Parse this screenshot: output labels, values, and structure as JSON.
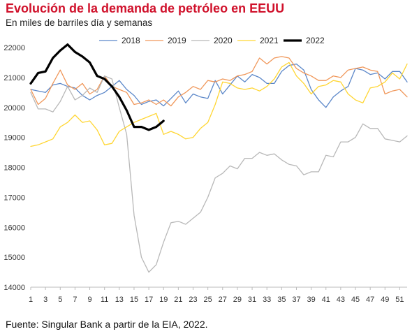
{
  "header": {
    "title": "Evolución de la demanda de petróleo en EEUU",
    "subtitle": "En miles de barriles día y semanas"
  },
  "footer": {
    "source": "Fuente: Singular Bank a partir de la EIA, 2022."
  },
  "colors": {
    "title": "#d0112b",
    "axis": "#bbbbbb"
  },
  "chart_data": {
    "type": "line",
    "xlim": [
      1,
      52
    ],
    "ylim": [
      14000,
      22000
    ],
    "y_ticks": [
      14000,
      15000,
      16000,
      17000,
      18000,
      19000,
      20000,
      21000,
      22000
    ],
    "x_ticks": [
      1,
      3,
      5,
      7,
      9,
      11,
      13,
      15,
      17,
      19,
      21,
      23,
      25,
      27,
      29,
      31,
      33,
      35,
      37,
      39,
      41,
      43,
      45,
      47,
      49,
      51
    ],
    "grid": false,
    "legend_position": "top-center",
    "series": [
      {
        "name": "2018",
        "color": "#5b87c9",
        "width": 1.3,
        "x": [
          1,
          2,
          3,
          4,
          5,
          6,
          7,
          8,
          9,
          10,
          11,
          12,
          13,
          14,
          15,
          16,
          17,
          18,
          19,
          20,
          21,
          22,
          23,
          24,
          25,
          26,
          27,
          28,
          29,
          30,
          31,
          32,
          33,
          34,
          35,
          36,
          37,
          38,
          39,
          40,
          41,
          42,
          43,
          44,
          45,
          46,
          47,
          48,
          49,
          50,
          51,
          52
        ],
        "values": [
          20600,
          20550,
          20500,
          20750,
          20800,
          20700,
          20650,
          20400,
          20250,
          20400,
          20500,
          20700,
          20900,
          20600,
          20400,
          20100,
          20200,
          20250,
          20050,
          20300,
          20550,
          20150,
          20450,
          20350,
          20300,
          20900,
          20450,
          20750,
          21050,
          20850,
          21100,
          21000,
          20800,
          20800,
          21200,
          21400,
          21450,
          21250,
          20600,
          20250,
          20000,
          20350,
          20550,
          20700,
          21300,
          21250,
          21100,
          21150,
          20950,
          21200,
          21200,
          20850
        ]
      },
      {
        "name": "2019",
        "color": "#f0975a",
        "width": 1.3,
        "x": [
          1,
          2,
          3,
          4,
          5,
          6,
          7,
          8,
          9,
          10,
          11,
          12,
          13,
          14,
          15,
          16,
          17,
          18,
          19,
          20,
          21,
          22,
          23,
          24,
          25,
          26,
          27,
          28,
          29,
          30,
          31,
          32,
          33,
          34,
          35,
          36,
          37,
          38,
          39,
          40,
          41,
          42,
          43,
          44,
          45,
          46,
          47,
          48,
          49,
          50,
          51,
          52
        ],
        "values": [
          20600,
          20100,
          20300,
          20800,
          21250,
          20750,
          20600,
          20800,
          20450,
          20600,
          21050,
          20700,
          20600,
          20500,
          20100,
          20150,
          20250,
          20100,
          20250,
          20050,
          20350,
          20500,
          20700,
          20600,
          20900,
          20850,
          20950,
          20900,
          21050,
          21100,
          21200,
          21650,
          21450,
          21650,
          21700,
          21650,
          21300,
          21150,
          21050,
          20900,
          20900,
          21050,
          21000,
          21250,
          21300,
          21350,
          21250,
          21200,
          20450,
          20550,
          20600,
          20350
        ]
      },
      {
        "name": "2020",
        "color": "#b8b8b8",
        "width": 1.3,
        "x": [
          1,
          2,
          3,
          4,
          5,
          6,
          7,
          8,
          9,
          10,
          11,
          12,
          13,
          14,
          15,
          16,
          17,
          18,
          19,
          20,
          21,
          22,
          23,
          24,
          25,
          26,
          27,
          28,
          29,
          30,
          31,
          32,
          33,
          34,
          35,
          36,
          37,
          38,
          39,
          40,
          41,
          42,
          43,
          44,
          45,
          46,
          47,
          48,
          49,
          50,
          51,
          52
        ],
        "values": [
          20500,
          19950,
          19950,
          19850,
          20200,
          20700,
          20250,
          20400,
          20650,
          20500,
          21050,
          20950,
          20000,
          19100,
          16400,
          15000,
          14500,
          14750,
          15500,
          16150,
          16200,
          16100,
          16300,
          16500,
          17000,
          17650,
          17800,
          18050,
          17950,
          18300,
          18300,
          18500,
          18400,
          18450,
          18250,
          18100,
          18050,
          17750,
          17850,
          17850,
          18400,
          18350,
          18850,
          18850,
          19000,
          19450,
          19300,
          19300,
          18950,
          18900,
          18850,
          19050
        ]
      },
      {
        "name": "2021",
        "color": "#ffd633",
        "width": 1.3,
        "x": [
          1,
          2,
          3,
          4,
          5,
          6,
          7,
          8,
          9,
          10,
          11,
          12,
          13,
          14,
          15,
          16,
          17,
          18,
          19,
          20,
          21,
          22,
          23,
          24,
          25,
          26,
          27,
          28,
          29,
          30,
          31,
          32,
          33,
          34,
          35,
          36,
          37,
          38,
          39,
          40,
          41,
          42,
          43,
          44,
          45,
          46,
          47,
          48,
          49,
          50,
          51,
          52
        ],
        "values": [
          18700,
          18750,
          18850,
          18950,
          19350,
          19500,
          19750,
          19500,
          19550,
          19250,
          18750,
          18800,
          19200,
          19350,
          19500,
          19600,
          19700,
          19800,
          19100,
          19200,
          19100,
          18950,
          19000,
          19300,
          19500,
          20100,
          20850,
          20800,
          20650,
          20600,
          20650,
          20550,
          20700,
          20950,
          21350,
          21500,
          21050,
          20800,
          20450,
          20700,
          20750,
          20900,
          20850,
          20450,
          20250,
          20150,
          20650,
          20700,
          20850,
          21150,
          20950,
          21450
        ]
      },
      {
        "name": "2022",
        "color": "#000000",
        "width": 3.2,
        "x": [
          1,
          2,
          3,
          4,
          5,
          6,
          7,
          8,
          9,
          10,
          11,
          12,
          13,
          14,
          15,
          16,
          17,
          18,
          19
        ],
        "values": [
          20800,
          21150,
          21200,
          21650,
          21900,
          22100,
          21850,
          21700,
          21500,
          21050,
          20950,
          20700,
          20350,
          19900,
          19350,
          19350,
          19250,
          19350,
          19550
        ]
      }
    ]
  }
}
